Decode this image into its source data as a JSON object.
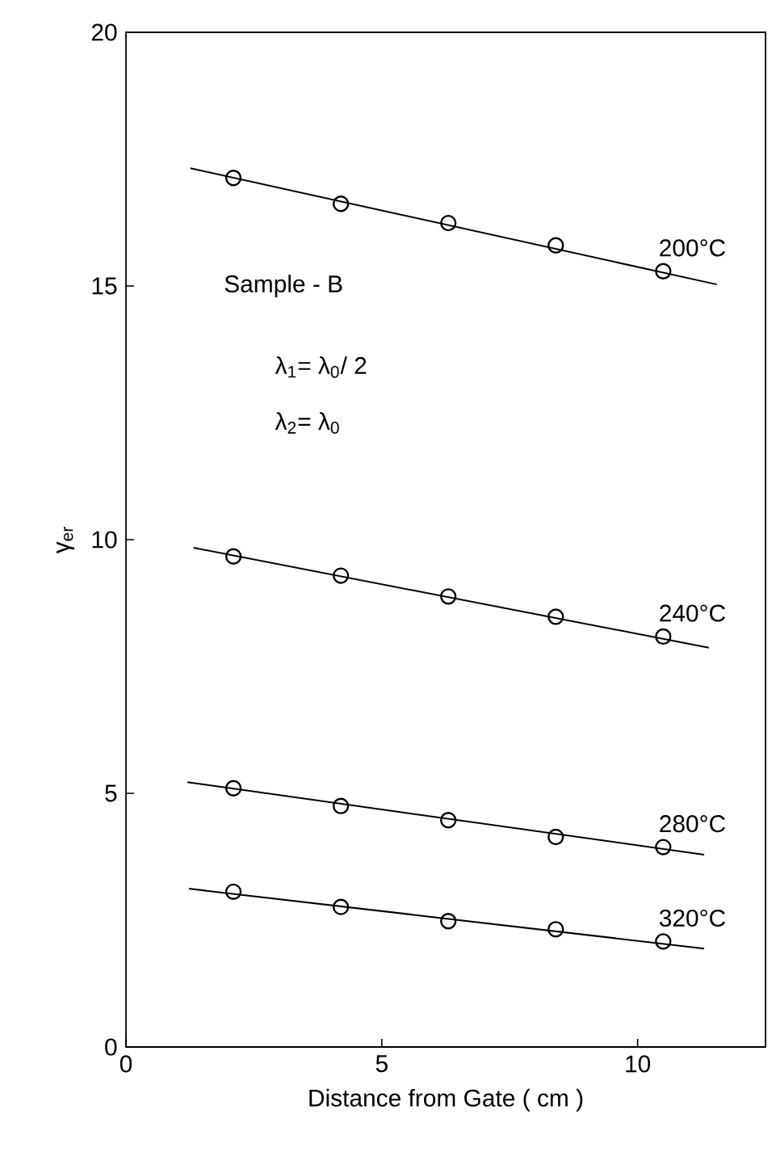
{
  "chart_data": {
    "type": "scatter",
    "xlabel": "Distance from Gate ( cm )",
    "ylabel": "γ$_{er}$",
    "annotations": [
      "Sample - B",
      "λ$_{1}$= λ$_{0}$/ 2",
      "λ$_{2}$= λ$_{0}$"
    ],
    "x": [
      2.1,
      4.2,
      6.3,
      8.4,
      10.5
    ],
    "series": [
      {
        "name": "200°C",
        "color": "#000000",
        "values": [
          17.13,
          16.62,
          16.24,
          15.8,
          15.29
        ]
      },
      {
        "name": "240°C",
        "color": "#000000",
        "values": [
          9.67,
          9.29,
          8.88,
          8.48,
          8.09
        ]
      },
      {
        "name": "280°C",
        "color": "#000000",
        "values": [
          5.1,
          4.75,
          4.47,
          4.14,
          3.94
        ]
      },
      {
        "name": "320°C",
        "color": "#000000",
        "values": [
          3.06,
          2.76,
          2.48,
          2.32,
          2.08
        ]
      },
      {
        "type": "line",
        "marker": "none",
        "color": "#000000",
        "x": [
          1.26,
          11.55
        ],
        "values": [
          17.32,
          15.03
        ]
      },
      {
        "type": "line",
        "marker": "none",
        "color": "#000000",
        "x": [
          1.32,
          11.39
        ],
        "values": [
          9.84,
          7.87
        ]
      },
      {
        "type": "line",
        "marker": "none",
        "color": "#000000",
        "x": [
          1.2,
          11.3
        ],
        "values": [
          5.22,
          3.79
        ]
      },
      {
        "type": "line",
        "marker": "none",
        "color": "#000000",
        "x": [
          1.23,
          11.3
        ],
        "values": [
          3.12,
          1.94
        ]
      }
    ],
    "marker": "circle",
    "line_style": "solid",
    "xlim": [
      0,
      12.5
    ],
    "ylim": [
      0,
      20
    ],
    "xticks": [
      0,
      5,
      10
    ],
    "yticks": [
      0,
      5,
      10,
      15,
      20
    ],
    "grid": false,
    "legend": false
  }
}
